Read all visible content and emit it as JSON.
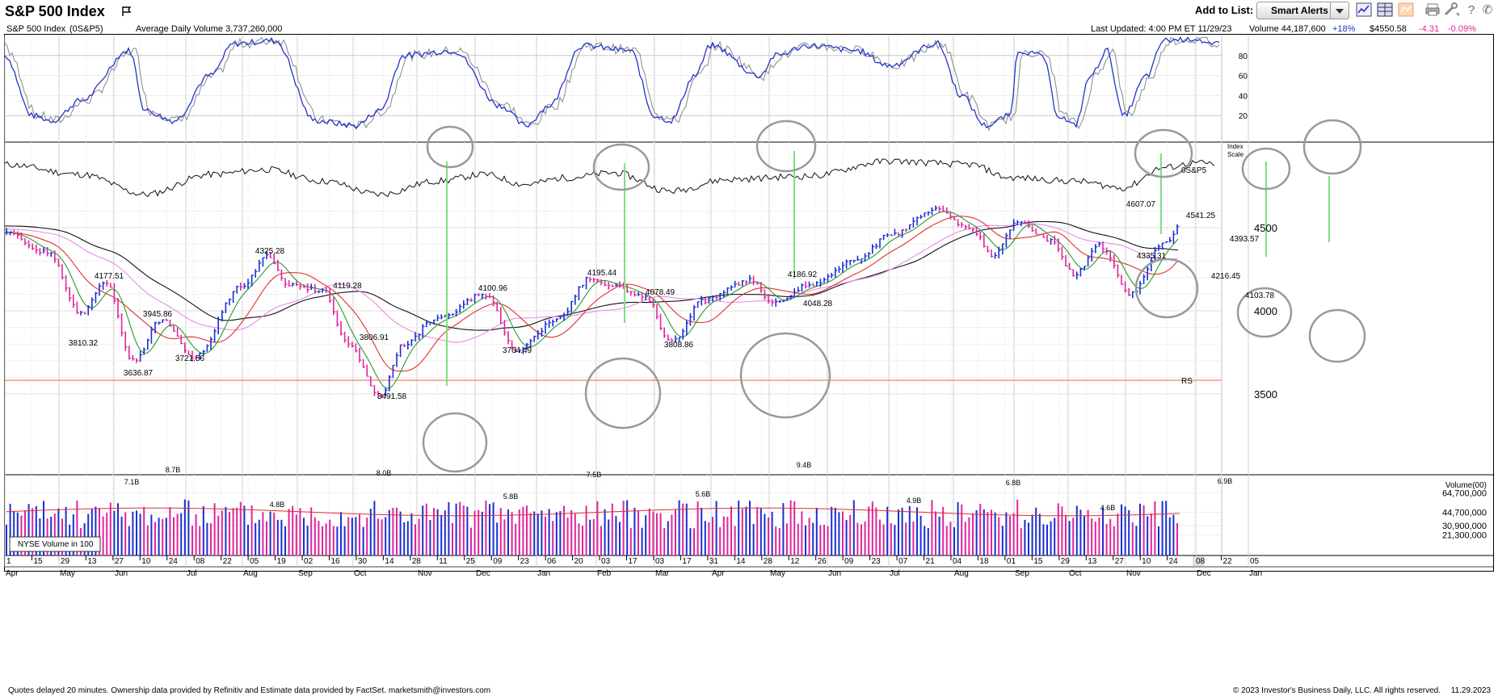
{
  "header": {
    "title": "S&P 500 Index",
    "add_to_list_label": "Add to List:",
    "smart_alerts_label": "Smart Alerts",
    "tool_icons": [
      "line-chart-icon",
      "table-view-icon",
      "layout-icon",
      "print-icon",
      "tools-icon",
      "help-icon",
      "phone-icon"
    ]
  },
  "info": {
    "name": "S&P 500 Index",
    "symbol": "(0S&P5)",
    "avg_volume": "Average Daily Volume 3,737,260,000",
    "last_updated": "Last Updated: 4:00 PM ET 11/29/23",
    "volume": "Volume 44,187,600",
    "volume_change": "+18%",
    "price": "$4550.58",
    "change": "-4.31",
    "change_pct": "-0.09%"
  },
  "colors": {
    "stoch_k": "#2233cc",
    "stoch_d": "#888888",
    "up_bar": "#1a2fcf",
    "down_bar": "#e0259c",
    "ma_short": "#2a9a2a",
    "ma_mid": "#e03030",
    "ma_long_pink": "#e58fe5",
    "ma_long_black": "#111111",
    "green_lines": "#7fe07f",
    "rs_line": "#f08060",
    "circles": "#999999"
  },
  "stochastic": {
    "levels": [
      "80",
      "60",
      "40",
      "20"
    ]
  },
  "price_pane": {
    "index_scale_label": [
      "Index",
      "Scale"
    ],
    "y_labels": [
      "4500",
      "4000",
      "3500"
    ],
    "rs_line_label": "0S&P5",
    "rs_label": "RS",
    "annotations": [
      "4177.51",
      "3810.32",
      "3636.87",
      "3945.86",
      "3721.56",
      "4325.28",
      "4119.28",
      "3806.91",
      "3491.58",
      "4100.96",
      "3764.49",
      "4195.44",
      "4078.49",
      "3808.86",
      "4186.92",
      "4048.28",
      "4607.07",
      "4335.31",
      "4541.25",
      "4216.45",
      "4393.57",
      "4103.78"
    ]
  },
  "volume_pane": {
    "title": "Volume(00)",
    "y_labels": [
      "64,700,000",
      "44,700,000",
      "30,900,000",
      "21,300,000"
    ],
    "legend": "NYSE Volume in 100",
    "peak_labels": [
      "7.1B",
      "8.7B",
      "4.8B",
      "8.0B",
      "5.8B",
      "7.5B",
      "5.6B",
      "9.4B",
      "4.9B",
      "6.8B",
      "4.6B",
      "6.9B"
    ]
  },
  "x_axis": {
    "days": [
      "1",
      "15",
      "29",
      "13",
      "27",
      "10",
      "24",
      "08",
      "22",
      "05",
      "19",
      "02",
      "16",
      "30",
      "14",
      "28",
      "11",
      "25",
      "09",
      "23",
      "06",
      "20",
      "03",
      "17",
      "03",
      "17",
      "31",
      "14",
      "28",
      "12",
      "26",
      "09",
      "23",
      "07",
      "21",
      "04",
      "18",
      "01",
      "15",
      "29",
      "13",
      "27",
      "10",
      "24",
      "08",
      "22",
      "05"
    ],
    "months": [
      "Apr",
      "May",
      "Jun",
      "Jul",
      "Aug",
      "Sep",
      "Oct",
      "Nov",
      "Dec",
      "Jan",
      "Feb",
      "Mar",
      "Apr",
      "May",
      "Jun",
      "Jul",
      "Aug",
      "Sep",
      "Oct",
      "Nov",
      "Dec",
      "Jan"
    ]
  },
  "footer": {
    "left": "Quotes delayed 20 minutes. Ownership data provided by Refinitiv and Estimate data provided by FactSet. marketsmith@investors.com",
    "copyright": "© 2023 Investor's Business Daily, LLC. All rights reserved.",
    "date": "11.29.2023"
  }
}
